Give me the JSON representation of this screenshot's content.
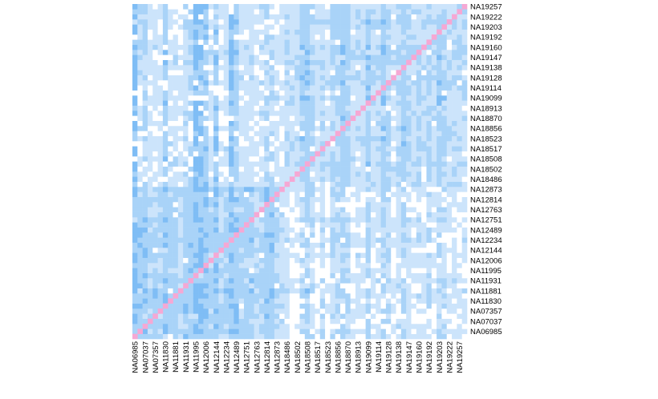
{
  "chart_data": {
    "type": "heatmap",
    "title": "",
    "xlabel": "",
    "ylabel": "",
    "labels": [
      "NA06985",
      "NA07037",
      "NA07357",
      "NA11830",
      "NA11881",
      "NA11931",
      "NA11995",
      "NA12006",
      "NA12144",
      "NA12234",
      "NA12489",
      "NA12751",
      "NA12763",
      "NA12814",
      "NA12873",
      "NA18486",
      "NA18502",
      "NA18508",
      "NA18517",
      "NA18523",
      "NA18856",
      "NA18870",
      "NA18913",
      "NA19099",
      "NA19114",
      "NA19128",
      "NA19138",
      "NA19147",
      "NA19160",
      "NA19192",
      "NA19203",
      "NA19222",
      "NA19257"
    ],
    "x_tick_labels": [
      "NA06985",
      "NA07037",
      "NA07357",
      "NA11830",
      "NA11881",
      "NA11931",
      "NA11995",
      "NA12006",
      "NA12144",
      "NA12234",
      "NA12489",
      "NA12751",
      "NA12763",
      "NA12814",
      "NA12873",
      "NA18486",
      "NA18502",
      "NA18508",
      "NA18517",
      "NA18523",
      "NA18856",
      "NA18870",
      "NA18913",
      "NA19099",
      "NA19114",
      "NA19128",
      "NA19138",
      "NA19147",
      "NA19160",
      "NA19192",
      "NA19203",
      "NA19222",
      "NA19257"
    ],
    "y_tick_labels_top_to_bottom": [
      "NA19257",
      "NA19222",
      "NA19203",
      "NA19192",
      "NA19160",
      "NA19147",
      "NA19138",
      "NA19128",
      "NA19114",
      "NA19099",
      "NA18913",
      "NA18870",
      "NA18856",
      "NA18523",
      "NA18517",
      "NA18508",
      "NA18502",
      "NA18486",
      "NA12873",
      "NA12814",
      "NA12763",
      "NA12751",
      "NA12489",
      "NA12234",
      "NA12144",
      "NA12006",
      "NA11995",
      "NA11931",
      "NA11881",
      "NA11830",
      "NA07357",
      "NA07037",
      "NA06985"
    ],
    "ticks_per_label": 2,
    "cells_per_axis": 66,
    "groups": [
      {
        "index_range": [
          0,
          30
        ],
        "members": "NA06985–NA12873"
      },
      {
        "index_range": [
          30,
          66
        ],
        "members": "NA18486–NA19257"
      }
    ],
    "diagonal": "self",
    "legend": "none",
    "grid": false,
    "colors": {
      "background": "#ffffff",
      "lowest": "#ffffff",
      "low": "#cce4fb",
      "mid": "#a9d3f8",
      "high": "#7fbdf5",
      "highest": "#3d9bef",
      "diagonal": "#f5a8d4"
    }
  }
}
